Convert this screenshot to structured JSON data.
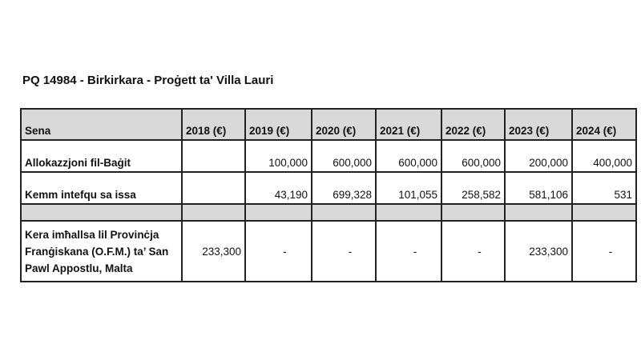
{
  "title": "PQ 14984 - Birkirkara - Proġett ta' Villa Lauri",
  "table": {
    "headers": [
      "Sena",
      "2018 (€)",
      "2019  (€)",
      "2020  (€)",
      "2021  (€)",
      "2022  (€)",
      "2023  (€)",
      "2024  (€)"
    ],
    "rows": [
      {
        "label": "Allokazzjoni fil-Baġit",
        "values": [
          "",
          "100,000",
          "600,000",
          "600,000",
          "600,000",
          "200,000",
          "400,000"
        ]
      },
      {
        "label": "Kemm intefqu sa issa",
        "values": [
          "",
          "43,190",
          "699,328",
          "101,055",
          "258,582",
          "581,106",
          "531"
        ]
      },
      {
        "label": "Kera imħallsa lil Provinċja Franġiskana (O.F.M.) ta’ San Pawl Appostlu, Malta",
        "values": [
          "233,300",
          "-",
          "-",
          "-",
          "-",
          "233,300",
          "-"
        ]
      }
    ]
  }
}
